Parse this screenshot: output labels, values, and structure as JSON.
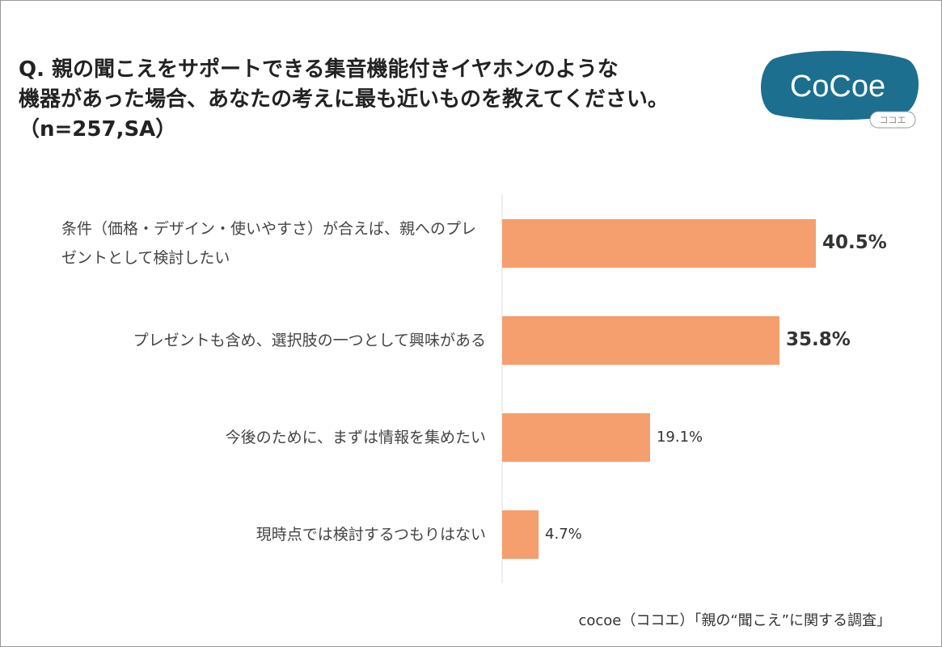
{
  "chart_data": {
    "type": "hbar",
    "title": [
      "Q. 親の聞こえをサポートできる集音機能付きイヤホンのような",
      "機器があった場合、あなたの考えに最も近いものを教えてください。",
      "（n=257,SA）"
    ],
    "categories": [
      "条件（価格・デザイン・使いやすさ）が合えば、親へのプレゼントとして検討したい",
      "プレゼントも含め、選択肢の一つとして興味がある",
      "今後のために、まずは情報を集めたい",
      "現時点では検討するつもりはない"
    ],
    "values": [
      40.5,
      35.8,
      19.1,
      4.7
    ],
    "value_labels": [
      "40.5%",
      "35.8%",
      "19.1%",
      "4.7%"
    ],
    "value_label_bold": [
      true,
      true,
      false,
      false
    ],
    "color": "#f59e6e",
    "xlim": [
      0,
      50
    ],
    "source": "cocoe（ココエ）「親の“聞こえ”に関する調査」",
    "logo": {
      "name": "CoCoe",
      "sub": "ココエ"
    }
  }
}
